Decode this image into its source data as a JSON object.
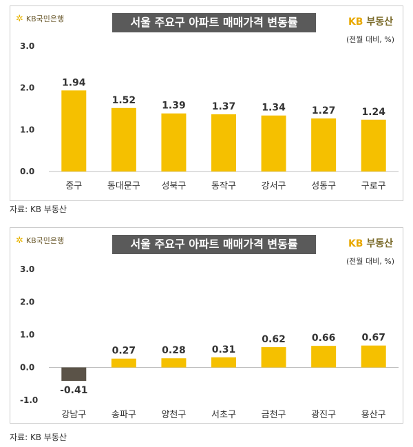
{
  "chart_data": [
    {
      "type": "bar",
      "title": "서울 주요구 아파트 매매가격 변동률",
      "unit_note": "(전월 대비, %)",
      "logo_text": "KB국민은행",
      "brand_text_a": "KB",
      "brand_text_b": "부동산",
      "source": "자료: KB 부동산",
      "categories": [
        "중구",
        "동대문구",
        "성북구",
        "동작구",
        "강서구",
        "성동구",
        "구로구"
      ],
      "values": [
        1.94,
        1.52,
        1.39,
        1.37,
        1.34,
        1.27,
        1.24
      ],
      "value_labels": [
        "1.94",
        "1.52",
        "1.39",
        "1.37",
        "1.34",
        "1.27",
        "1.24"
      ],
      "yticks": [
        "3.0",
        "2.0",
        "1.0",
        "0.0"
      ],
      "ytick_values": [
        3,
        2,
        1,
        0
      ],
      "ylim": [
        0,
        3
      ],
      "grid": false,
      "colors": {
        "positive": "#F5C000",
        "negative": "#5B5348"
      }
    },
    {
      "type": "bar",
      "title": "서울 주요구 아파트 매매가격 변동률",
      "unit_note": "(전월 대비, %)",
      "logo_text": "KB국민은행",
      "brand_text_a": "KB",
      "brand_text_b": "부동산",
      "source": "자료: KB 부동산",
      "categories": [
        "강남구",
        "송파구",
        "양천구",
        "서초구",
        "금천구",
        "광진구",
        "용산구"
      ],
      "values": [
        -0.41,
        0.27,
        0.28,
        0.31,
        0.62,
        0.66,
        0.67
      ],
      "value_labels": [
        "-0.41",
        "0.27",
        "0.28",
        "0.31",
        "0.62",
        "0.66",
        "0.67"
      ],
      "yticks": [
        "3.0",
        "2.0",
        "1.0",
        "0.0",
        "-1.0"
      ],
      "ytick_values": [
        3,
        2,
        1,
        0,
        -1
      ],
      "ylim": [
        -1,
        3
      ],
      "grid": false,
      "colors": {
        "positive": "#F5C000",
        "negative": "#5B5348"
      }
    }
  ]
}
